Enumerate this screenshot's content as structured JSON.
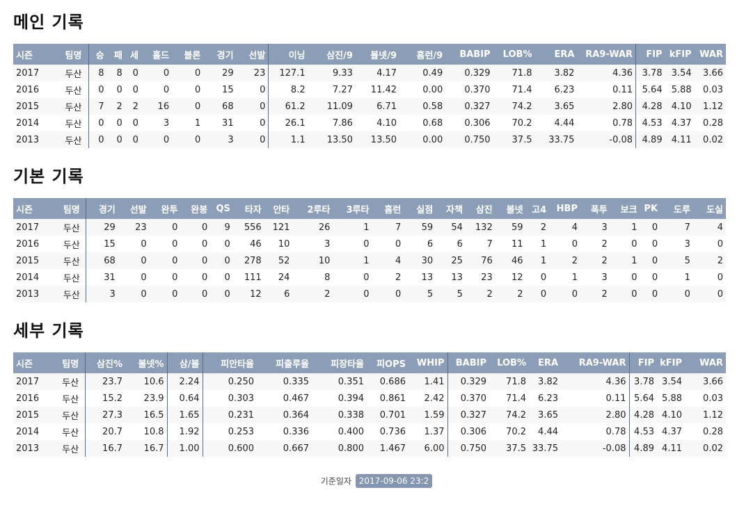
{
  "sections": {
    "main": {
      "title": "메인 기록",
      "headers": [
        "시즌",
        "팀명",
        "승",
        "패",
        "세",
        "홀드",
        "블론",
        "경기",
        "선발",
        "이닝",
        "삼진/9",
        "볼넷/9",
        "홈런/9",
        "BABIP",
        "LOB%",
        "ERA",
        "RA9-WAR",
        "FIP",
        "kFIP",
        "WAR"
      ],
      "rows": [
        [
          "2017",
          "두산",
          "8",
          "8",
          "0",
          "0",
          "0",
          "29",
          "23",
          "127.1",
          "9.33",
          "4.17",
          "0.49",
          "0.329",
          "71.8",
          "3.82",
          "4.36",
          "3.78",
          "3.54",
          "3.66"
        ],
        [
          "2016",
          "두산",
          "0",
          "0",
          "0",
          "0",
          "0",
          "15",
          "0",
          "8.2",
          "7.27",
          "11.42",
          "0.00",
          "0.370",
          "71.4",
          "6.23",
          "0.11",
          "5.64",
          "5.88",
          "0.03"
        ],
        [
          "2015",
          "두산",
          "7",
          "2",
          "2",
          "16",
          "0",
          "68",
          "0",
          "61.2",
          "11.09",
          "6.71",
          "0.58",
          "0.327",
          "74.2",
          "3.65",
          "2.80",
          "4.28",
          "4.10",
          "1.12"
        ],
        [
          "2014",
          "두산",
          "0",
          "0",
          "0",
          "3",
          "1",
          "31",
          "0",
          "26.1",
          "7.86",
          "4.10",
          "0.68",
          "0.306",
          "70.2",
          "4.44",
          "0.78",
          "4.53",
          "4.37",
          "0.28"
        ],
        [
          "2013",
          "두산",
          "0",
          "0",
          "0",
          "0",
          "0",
          "3",
          "0",
          "1.1",
          "13.50",
          "13.50",
          "0.00",
          "0.750",
          "37.5",
          "33.75",
          "-0.08",
          "4.89",
          "4.11",
          "0.02"
        ]
      ]
    },
    "basic": {
      "title": "기본 기록",
      "headers": [
        "시즌",
        "팀명",
        "경기",
        "선발",
        "완투",
        "완봉",
        "QS",
        "타자",
        "안타",
        "2루타",
        "3루타",
        "홈런",
        "실점",
        "자책",
        "삼진",
        "볼넷",
        "고4",
        "HBP",
        "폭투",
        "보크",
        "PK",
        "도루",
        "도실"
      ],
      "rows": [
        [
          "2017",
          "두산",
          "29",
          "23",
          "0",
          "0",
          "9",
          "556",
          "121",
          "26",
          "1",
          "7",
          "59",
          "54",
          "132",
          "59",
          "2",
          "4",
          "3",
          "1",
          "0",
          "7",
          "4"
        ],
        [
          "2016",
          "두산",
          "15",
          "0",
          "0",
          "0",
          "0",
          "46",
          "10",
          "3",
          "0",
          "0",
          "6",
          "6",
          "7",
          "11",
          "1",
          "0",
          "2",
          "0",
          "0",
          "3",
          "0"
        ],
        [
          "2015",
          "두산",
          "68",
          "0",
          "0",
          "0",
          "0",
          "278",
          "52",
          "10",
          "1",
          "4",
          "30",
          "25",
          "76",
          "46",
          "1",
          "2",
          "2",
          "1",
          "0",
          "5",
          "2"
        ],
        [
          "2014",
          "두산",
          "31",
          "0",
          "0",
          "0",
          "0",
          "111",
          "24",
          "8",
          "0",
          "2",
          "13",
          "13",
          "23",
          "12",
          "0",
          "1",
          "3",
          "0",
          "0",
          "1",
          "0"
        ],
        [
          "2013",
          "두산",
          "3",
          "0",
          "0",
          "0",
          "0",
          "12",
          "6",
          "2",
          "0",
          "0",
          "5",
          "5",
          "2",
          "2",
          "0",
          "0",
          "2",
          "0",
          "0",
          "0",
          "0"
        ]
      ]
    },
    "detail": {
      "title": "세부 기록",
      "headers": [
        "시즌",
        "팀명",
        "삼진%",
        "볼넷%",
        "삼/볼",
        "피안타율",
        "피출루율",
        "피장타율",
        "피OPS",
        "WHIP",
        "BABIP",
        "LOB%",
        "ERA",
        "RA9-WAR",
        "FIP",
        "kFIP",
        "WAR"
      ],
      "rows": [
        [
          "2017",
          "두산",
          "23.7",
          "10.6",
          "2.24",
          "0.250",
          "0.335",
          "0.351",
          "0.686",
          "1.41",
          "0.329",
          "71.8",
          "3.82",
          "4.36",
          "3.78",
          "3.54",
          "3.66"
        ],
        [
          "2016",
          "두산",
          "15.2",
          "23.9",
          "0.64",
          "0.303",
          "0.467",
          "0.394",
          "0.861",
          "2.42",
          "0.370",
          "71.4",
          "6.23",
          "0.11",
          "5.64",
          "5.88",
          "0.03"
        ],
        [
          "2015",
          "두산",
          "27.3",
          "16.5",
          "1.65",
          "0.231",
          "0.364",
          "0.338",
          "0.701",
          "1.59",
          "0.327",
          "74.2",
          "3.65",
          "2.80",
          "4.28",
          "4.10",
          "1.12"
        ],
        [
          "2014",
          "두산",
          "20.7",
          "10.8",
          "1.92",
          "0.253",
          "0.336",
          "0.400",
          "0.736",
          "1.37",
          "0.306",
          "70.2",
          "4.44",
          "0.78",
          "4.53",
          "4.37",
          "0.28"
        ],
        [
          "2013",
          "두산",
          "16.7",
          "16.7",
          "1.00",
          "0.600",
          "0.667",
          "0.800",
          "1.467",
          "6.00",
          "0.750",
          "37.5",
          "33.75",
          "-0.08",
          "4.89",
          "4.11",
          "0.02"
        ]
      ]
    }
  },
  "footer": {
    "label": "기준일자",
    "date": "2017-09-06 23:2"
  }
}
